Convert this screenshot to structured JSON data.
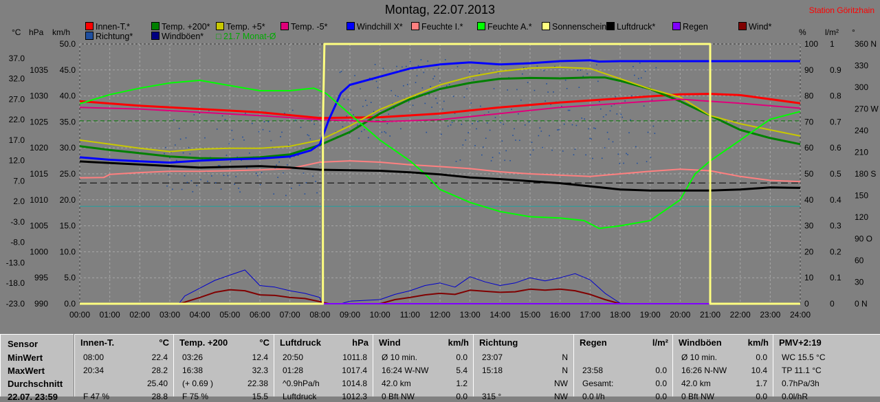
{
  "title": "Montag, 22.07.2013",
  "station": "Station Göritzhain",
  "axis_heads": {
    "c": "°C",
    "hpa": "hPa",
    "kmh": "km/h",
    "pct": "%",
    "lm2": "l/m²",
    "deg": "°"
  },
  "legend": [
    {
      "label": "Innen-T.*",
      "color": "#ff0000"
    },
    {
      "label": "Temp. +200*",
      "color": "#008000"
    },
    {
      "label": "Temp. +5*",
      "color": "#c8c800"
    },
    {
      "label": "Temp. -5*",
      "color": "#e0007a"
    },
    {
      "label": "Windchill X*",
      "color": "#0000ff"
    },
    {
      "label": "Feuchte I.*",
      "color": "#ff8080"
    },
    {
      "label": "Feuchte A.*",
      "color": "#00ff00"
    },
    {
      "label": "Sonnenschein",
      "color": "#ffff80"
    },
    {
      "label": "Luftdruck*",
      "color": "#000000"
    },
    {
      "label": "Regen",
      "color": "#8000ff"
    },
    {
      "label": "Wind*",
      "color": "#800000"
    },
    {
      "label": "Richtung*",
      "color": "#1f4f9f"
    },
    {
      "label": "Windböen*",
      "color": "#000080"
    }
  ],
  "legend_note": "21.7 Monat-Ø",
  "chart_data": {
    "type": "line",
    "x_ticks": [
      "00:00",
      "01:00",
      "02:00",
      "03:00",
      "04:00",
      "05:00",
      "06:00",
      "07:00",
      "08:00",
      "09:00",
      "10:00",
      "11:00",
      "12:00",
      "13:00",
      "14:00",
      "15:00",
      "16:00",
      "17:00",
      "18:00",
      "19:00",
      "20:00",
      "21:00",
      "22:00",
      "23:00",
      "24:00"
    ],
    "left_axes": {
      "celsius": [
        "37.0",
        "32.0",
        "27.0",
        "22.0",
        "17.0",
        "12.0",
        "7.0",
        "2.0",
        "-3.0",
        "-8.0",
        "-13.0",
        "-18.0",
        "-23.0"
      ],
      "hpa": [
        "1035",
        "1030",
        "1025",
        "1020",
        "1015",
        "1010",
        "1005",
        "1000",
        "995",
        "990"
      ],
      "kmh": [
        "50.0",
        "45.0",
        "40.0",
        "35.0",
        "30.0",
        "25.0",
        "20.0",
        "15.0",
        "10.0",
        "5.0",
        "0.0"
      ]
    },
    "right_axes": {
      "percent": [
        "100",
        "90",
        "80",
        "70",
        "60",
        "50",
        "40",
        "30",
        "20",
        "10",
        "0"
      ],
      "rain": [
        "1",
        "0.9",
        "0.8",
        "0.7",
        "0.6",
        "0.5",
        "0.4",
        "0.3",
        "0.2",
        "0.1",
        "0"
      ],
      "direction": [
        "360 N",
        "330",
        "300",
        "270 W",
        "240",
        "210",
        "180 S",
        "150",
        "120",
        "90 O",
        "60",
        "30",
        "0 N"
      ]
    },
    "ylim_celsius": [
      -23,
      40.5
    ],
    "series": [
      {
        "name": "Innen-T.*",
        "color": "#ff0000",
        "width": 3,
        "unit": "celsius",
        "x": [
          0,
          2,
          4,
          6,
          8,
          10,
          12,
          14,
          16,
          18,
          20,
          21,
          22,
          24
        ],
        "y": [
          26.5,
          25.4,
          24.6,
          23.8,
          22.4,
          22.6,
          23.5,
          25.0,
          26.2,
          27.2,
          28.2,
          28.3,
          28.0,
          26.0
        ]
      },
      {
        "name": "Temp. +200*",
        "color": "#008000",
        "width": 3,
        "unit": "celsius",
        "x": [
          0,
          1,
          2,
          3,
          4,
          5,
          6,
          7,
          8,
          9,
          10,
          11,
          12,
          13,
          14,
          15,
          16,
          17,
          17.5,
          18,
          19,
          20,
          21,
          22,
          23,
          24
        ],
        "y": [
          15.5,
          14.6,
          13.8,
          13.0,
          12.6,
          12.5,
          12.8,
          13.5,
          15.8,
          19.0,
          23.5,
          27.0,
          29.5,
          31.0,
          32.0,
          32.2,
          32.1,
          32.3,
          32.3,
          31.5,
          29.5,
          26.5,
          23.0,
          19.5,
          17.5,
          16.0
        ]
      },
      {
        "name": "Temp. +5*",
        "color": "#c8c800",
        "width": 2,
        "unit": "celsius",
        "x": [
          0,
          1,
          2,
          3,
          4,
          5,
          6,
          7,
          8,
          9,
          10,
          11,
          12,
          13,
          14,
          15,
          16,
          17,
          18,
          19,
          20,
          21,
          22,
          23,
          24
        ],
        "y": [
          17.0,
          16.0,
          15.0,
          14.2,
          14.8,
          15.0,
          15.0,
          15.5,
          17.0,
          20.5,
          24.5,
          27.5,
          30.5,
          32.5,
          33.8,
          34.6,
          34.8,
          34.5,
          32.0,
          29.5,
          27.5,
          23.0,
          21.0,
          19.5,
          18.0
        ]
      },
      {
        "name": "Temp. -5*",
        "color": "#e0007a",
        "width": 2,
        "unit": "celsius",
        "x": [
          0,
          2,
          4,
          6,
          8,
          10,
          12,
          14,
          16,
          18,
          20,
          22,
          24
        ],
        "y": [
          25.0,
          24.6,
          23.8,
          23.0,
          22.0,
          21.5,
          22.0,
          23.5,
          25.0,
          26.0,
          27.0,
          26.0,
          24.8
        ]
      },
      {
        "name": "Windchill X*",
        "color": "#0000ff",
        "width": 3,
        "unit": "celsius",
        "x": [
          0,
          1,
          2,
          3,
          4,
          5,
          6,
          7,
          7.7,
          8,
          8.3,
          8.7,
          9,
          10,
          11,
          12,
          13,
          14,
          15,
          16,
          17,
          17.3,
          18,
          20,
          22,
          24
        ],
        "y": [
          12.8,
          12.2,
          11.8,
          11.5,
          12.0,
          12.3,
          12.5,
          13.0,
          14.5,
          16.0,
          22.0,
          28.5,
          30.5,
          32.5,
          34.5,
          35.5,
          36.0,
          35.5,
          35.8,
          36.3,
          36.5,
          36.2,
          36.3,
          36.3,
          36.3,
          36.3
        ]
      },
      {
        "name": "Feuchte I.*",
        "color": "#ff8080",
        "width": 2,
        "unit": "percent",
        "x": [
          0,
          0.8,
          1,
          2,
          3,
          4,
          5,
          6,
          7,
          8,
          9,
          10,
          11,
          12,
          13,
          14,
          15,
          16,
          17,
          18,
          19,
          20,
          21,
          22,
          23,
          24
        ],
        "y": [
          48.5,
          48.6,
          49.8,
          50.5,
          51.0,
          51.0,
          51.2,
          51.5,
          52.0,
          54.5,
          55.0,
          54.5,
          53.5,
          52.8,
          52.0,
          50.8,
          50.0,
          49.5,
          49.0,
          50.0,
          51.0,
          51.8,
          51.2,
          49.0,
          47.5,
          47.0
        ]
      },
      {
        "name": "Feuchte A.*",
        "color": "#00ff00",
        "width": 2,
        "unit": "percent",
        "x": [
          0,
          1,
          2,
          3,
          4,
          5,
          6,
          7,
          7.8,
          8.2,
          9,
          10,
          11,
          11.5,
          12,
          13,
          14,
          15,
          16,
          16.8,
          17.3,
          18,
          19,
          19.5,
          20,
          20.5,
          21,
          22,
          23,
          24
        ],
        "y": [
          77,
          80.5,
          83,
          85,
          86,
          84,
          82,
          82,
          83,
          81,
          73,
          63,
          55,
          50,
          44,
          39,
          35.5,
          33.5,
          33,
          32,
          29,
          30,
          32,
          36,
          40,
          50,
          55,
          63,
          71,
          74
        ]
      },
      {
        "name": "Luftdruck*",
        "color": "#000000",
        "width": 3,
        "unit": "hpa",
        "x": [
          0,
          2,
          4,
          6,
          7,
          8,
          9,
          10,
          11,
          12,
          13,
          14,
          15,
          16,
          17,
          18,
          19,
          20,
          21,
          22,
          23,
          24
        ],
        "y": [
          1017.4,
          1016.8,
          1016.2,
          1016.5,
          1016.2,
          1015.8,
          1015.7,
          1015.6,
          1015.3,
          1014.9,
          1014.3,
          1014.0,
          1013.6,
          1013.2,
          1012.6,
          1012.0,
          1011.8,
          1011.8,
          1011.8,
          1012.0,
          1012.4,
          1012.3
        ]
      },
      {
        "name": "Windböen*",
        "color": "#0000cc",
        "width": 1,
        "unit": "kmh",
        "x": [
          0,
          3.3,
          3.5,
          4,
          4.5,
          5,
          5.5,
          6,
          6.5,
          7,
          7.5,
          8,
          8.05,
          8.7,
          9,
          10,
          10.5,
          11,
          11.5,
          12,
          12.5,
          13,
          13.5,
          14,
          14.5,
          15,
          15.5,
          16,
          16.5,
          17,
          17.5,
          18,
          19,
          24
        ],
        "y": [
          0,
          0,
          1.5,
          3.0,
          4.5,
          5.5,
          6.5,
          3.5,
          3.2,
          2.5,
          2.0,
          1.2,
          0,
          0,
          0.5,
          0.8,
          1.8,
          2.5,
          3.5,
          4.0,
          3.2,
          5.2,
          4.2,
          3.5,
          4.0,
          5.0,
          4.4,
          5.0,
          5.8,
          4.6,
          2.0,
          0.1,
          0,
          0
        ]
      },
      {
        "name": "Wind*",
        "color": "#800000",
        "width": 2,
        "unit": "kmh",
        "x": [
          0,
          3.3,
          3.5,
          4,
          4.5,
          5,
          5.5,
          6,
          6.5,
          7,
          7.5,
          8,
          8.3,
          9,
          10,
          10.5,
          11,
          11.5,
          12,
          12.5,
          13,
          13.5,
          14,
          14.5,
          15,
          15.5,
          16,
          16.5,
          17,
          17.5,
          18,
          24
        ],
        "y": [
          0,
          0,
          0.3,
          1.2,
          2.2,
          2.7,
          2.5,
          1.7,
          1.6,
          1.2,
          1.0,
          0.4,
          0,
          0,
          0,
          0.8,
          1.2,
          1.7,
          2.0,
          1.8,
          2.6,
          2.4,
          2.2,
          2.3,
          2.8,
          2.6,
          2.8,
          2.5,
          1.8,
          0.8,
          0,
          0
        ]
      },
      {
        "name": "Regen",
        "color": "#8000ff",
        "width": 2,
        "unit": "rain",
        "x": [
          0,
          24
        ],
        "y": [
          0,
          0
        ]
      },
      {
        "name": "Sonnenschein",
        "color": "#ffff80",
        "width": 3,
        "unit": "percent",
        "x": [
          0,
          8.1,
          8.1,
          8.15,
          20.95,
          21.0,
          21.0,
          24
        ],
        "y": [
          0,
          0,
          70,
          100,
          100,
          100,
          0,
          0
        ]
      }
    ],
    "reference_lines": [
      {
        "unit": "celsius",
        "value": 21.7,
        "color": "#007700",
        "dash": "6,4"
      },
      {
        "unit": "hpa",
        "value": 1013.25,
        "color": "#000000",
        "dash": "10,5"
      },
      {
        "unit": "percent",
        "value": 37.5,
        "color": "#20a0a0",
        "dash": "0"
      }
    ]
  },
  "table": {
    "row_labels": [
      "Sensor",
      "MinWert",
      "MaxWert",
      "Durchschnitt",
      "22.07. 23:59"
    ],
    "columns": [
      {
        "head": "Innen-T.",
        "unit": "°C",
        "rows": [
          [
            "08:00",
            "22.4"
          ],
          [
            "20:34",
            "28.2"
          ],
          [
            "",
            "25.40"
          ],
          [
            "F 47 %",
            "28.8"
          ]
        ]
      },
      {
        "head": "Temp. +200",
        "unit": "°C",
        "rows": [
          [
            "03:26",
            "12.4"
          ],
          [
            "16:38",
            "32.3"
          ],
          [
            "(+ 0.69 )",
            "22.38"
          ],
          [
            "F 75 %",
            "15.5"
          ]
        ]
      },
      {
        "head": "Luftdruck",
        "unit": "hPa",
        "rows": [
          [
            "20:50",
            "1011.8"
          ],
          [
            "01:28",
            "1017.4"
          ],
          [
            "^0.9hPa/h",
            "1014.8"
          ],
          [
            "Luftdruck",
            "1012.3"
          ]
        ]
      },
      {
        "head": "Wind",
        "unit": "km/h",
        "rows": [
          [
            "Ø 10 min.",
            "0.0"
          ],
          [
            "16:24 W-NW",
            "5.4"
          ],
          [
            "42.0 km",
            "1.2"
          ],
          [
            "0 Bft NW",
            "0.0"
          ]
        ]
      },
      {
        "head": "Richtung",
        "unit": "",
        "rows": [
          [
            "23:07",
            "N"
          ],
          [
            "15:18",
            "N"
          ],
          [
            "",
            "NW"
          ],
          [
            "315 °",
            "NW"
          ]
        ]
      },
      {
        "head": "Regen",
        "unit": "l/m²",
        "rows": [
          [
            "",
            ""
          ],
          [
            "23:58",
            "0.0"
          ],
          [
            "Gesamt:",
            "0.0"
          ],
          [
            "0.0 l/h",
            "0.0"
          ]
        ]
      },
      {
        "head": "Windböen",
        "unit": "km/h",
        "rows": [
          [
            "Ø 10 min.",
            "0.0"
          ],
          [
            "16:26 N-NW",
            "10.4"
          ],
          [
            "42.0 km",
            "1.7"
          ],
          [
            "0 Bft NW",
            "0.0"
          ]
        ]
      },
      {
        "head": "PMV+2:19",
        "unit": "",
        "rows": [
          [
            "WC 15.5 °C",
            ""
          ],
          [
            "TP 11.1 °C",
            ""
          ],
          [
            "0.7hPa/3h",
            ""
          ],
          [
            "0.0l/hR",
            ""
          ]
        ]
      }
    ]
  }
}
